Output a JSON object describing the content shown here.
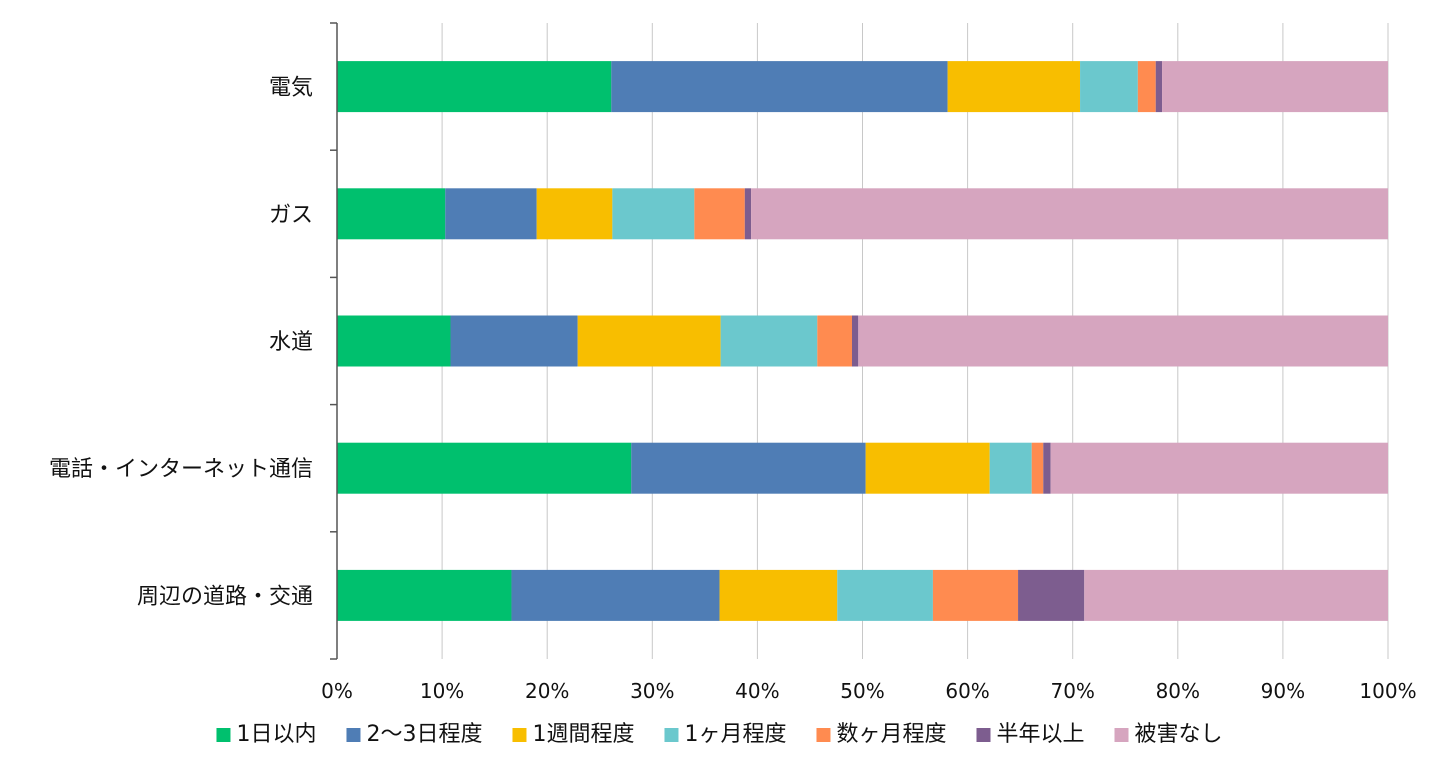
{
  "chart_data": {
    "type": "bar",
    "orientation": "horizontal",
    "stacked": "percent",
    "categories": [
      "電気",
      "ガス",
      "水道",
      "電話・インターネット通信",
      "周辺の道路・交通"
    ],
    "series": [
      {
        "name": "1日以内",
        "color": "#00c06e",
        "values": [
          26.1,
          10.3,
          10.8,
          28.0,
          16.6
        ]
      },
      {
        "name": "2〜3日程度",
        "color": "#4f7db5",
        "values": [
          32.0,
          8.7,
          12.1,
          22.3,
          19.8
        ]
      },
      {
        "name": "1週間程度",
        "color": "#f8be00",
        "values": [
          12.6,
          7.2,
          13.6,
          11.8,
          11.2
        ]
      },
      {
        "name": "1ヶ月程度",
        "color": "#6bc8cd",
        "values": [
          5.5,
          7.8,
          9.2,
          4.0,
          9.1
        ]
      },
      {
        "name": "数ヶ月程度",
        "color": "#ff8b50",
        "values": [
          1.7,
          4.8,
          3.3,
          1.1,
          8.1
        ]
      },
      {
        "name": "半年以上",
        "color": "#7d5d8f",
        "values": [
          0.6,
          0.6,
          0.6,
          0.7,
          6.3
        ]
      },
      {
        "name": "被害なし",
        "color": "#d6a5bf",
        "values": [
          21.5,
          60.6,
          50.4,
          32.1,
          28.9
        ]
      }
    ],
    "xlim": [
      0,
      100
    ],
    "xticks": [
      "0%",
      "10%",
      "20%",
      "30%",
      "40%",
      "50%",
      "60%",
      "70%",
      "80%",
      "90%",
      "100%"
    ],
    "grid": true,
    "legend_position": "bottom"
  }
}
